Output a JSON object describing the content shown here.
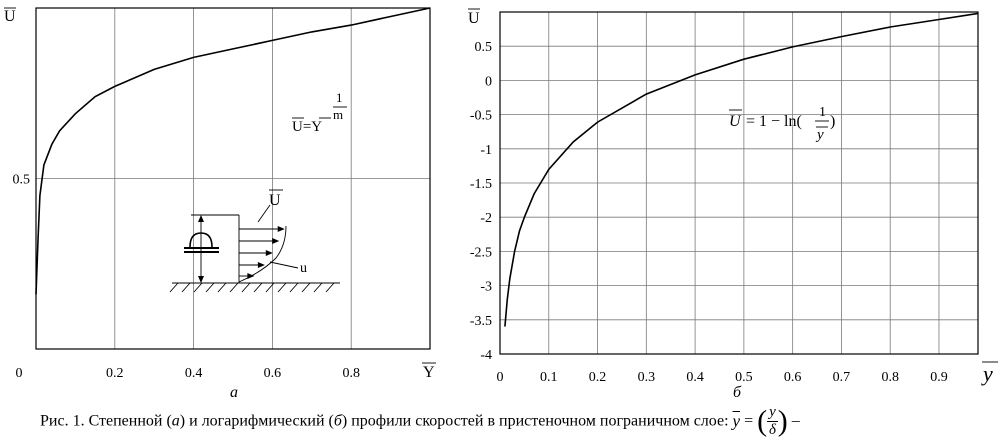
{
  "chart_data": [
    {
      "type": "line",
      "panel_label": "а",
      "xlabel": "Y",
      "ylabel": "U",
      "xlim": [
        0,
        1
      ],
      "ylim": [
        0,
        1
      ],
      "x_ticks": [
        {
          "v": 0,
          "label": "0"
        },
        {
          "v": 0.2,
          "label": "0.2"
        },
        {
          "v": 0.4,
          "label": "0.4"
        },
        {
          "v": 0.6,
          "label": "0.6"
        },
        {
          "v": 0.8,
          "label": "0.8"
        }
      ],
      "y_ticks": [
        {
          "v": 0.5,
          "label": "0.5"
        }
      ],
      "grid": true,
      "annotation": {
        "lhs": "U=Y",
        "exp_num": "1",
        "exp_den": "m"
      },
      "inset_labels": {
        "outer": "U",
        "inner": "u"
      },
      "series": [
        {
          "x": [
            0,
            0.005,
            0.01,
            0.02,
            0.04,
            0.06,
            0.1,
            0.15,
            0.2,
            0.3,
            0.4,
            0.5,
            0.6,
            0.7,
            0.8,
            0.9,
            1.0
          ],
          "y": [
            0.16,
            0.32,
            0.45,
            0.54,
            0.6,
            0.64,
            0.69,
            0.74,
            0.77,
            0.82,
            0.855,
            0.88,
            0.905,
            0.93,
            0.95,
            0.975,
            1.0
          ]
        }
      ]
    },
    {
      "type": "line",
      "panel_label": "б",
      "xlabel": "y",
      "ylabel": "U",
      "xlim": [
        0,
        0.98
      ],
      "ylim": [
        -4,
        1
      ],
      "x_ticks": [
        {
          "v": 0,
          "label": "0"
        },
        {
          "v": 0.1,
          "label": "0.1"
        },
        {
          "v": 0.2,
          "label": "0.2"
        },
        {
          "v": 0.3,
          "label": "0.3"
        },
        {
          "v": 0.4,
          "label": "0.4"
        },
        {
          "v": 0.5,
          "label": "0.5"
        },
        {
          "v": 0.6,
          "label": "0.6"
        },
        {
          "v": 0.7,
          "label": "0.7"
        },
        {
          "v": 0.8,
          "label": "0.8"
        },
        {
          "v": 0.9,
          "label": "0.9"
        }
      ],
      "y_ticks": [
        {
          "v": 0.5,
          "label": "0.5"
        },
        {
          "v": 0,
          "label": "0"
        },
        {
          "v": -0.5,
          "label": "-0.5"
        },
        {
          "v": -1,
          "label": "-1"
        },
        {
          "v": -1.5,
          "label": "-1.5"
        },
        {
          "v": -2,
          "label": "-2"
        },
        {
          "v": -2.5,
          "label": "-2.5"
        },
        {
          "v": -3,
          "label": "-3"
        },
        {
          "v": -3.5,
          "label": "-3.5"
        },
        {
          "v": -4,
          "label": "-4"
        }
      ],
      "grid": true,
      "annotation": {
        "lhs": "U",
        "rhs": "= 1 − ln(",
        "frac_num": "1",
        "frac_den": "y",
        "close": ")"
      },
      "series": [
        {
          "x": [
            0.01,
            0.015,
            0.02,
            0.03,
            0.04,
            0.05,
            0.07,
            0.1,
            0.15,
            0.2,
            0.3,
            0.4,
            0.5,
            0.6,
            0.7,
            0.8,
            0.9,
            0.98
          ],
          "y": [
            -3.6,
            -3.2,
            -2.9,
            -2.5,
            -2.2,
            -2.0,
            -1.66,
            -1.3,
            -0.9,
            -0.61,
            -0.2,
            0.08,
            0.31,
            0.49,
            0.64,
            0.78,
            0.89,
            0.98
          ]
        }
      ]
    }
  ],
  "caption": {
    "prefix": "Рис. 1. Степенной (",
    "a": "а",
    "mid1": ") и логарифмический (",
    "b": "б",
    "mid2": ") профили скоростей в пристеночном пограничном слое: ",
    "var": "y",
    "eq": " = ",
    "frac_num": "y",
    "frac_den": "δ",
    "dash": " –"
  }
}
